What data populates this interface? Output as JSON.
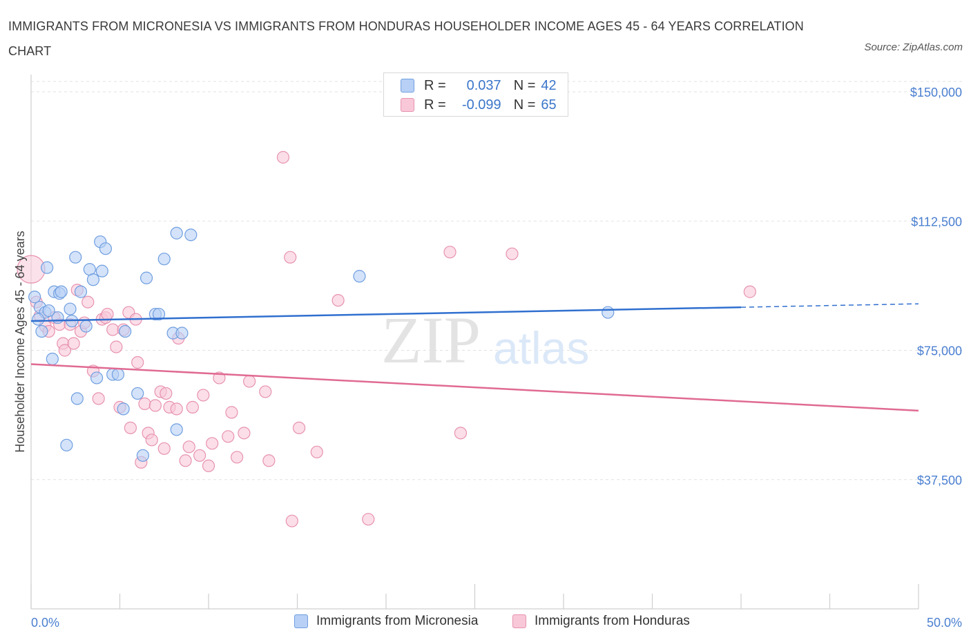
{
  "title": "IMMIGRANTS FROM MICRONESIA VS IMMIGRANTS FROM HONDURAS HOUSEHOLDER INCOME AGES 45 - 64 YEARS CORRELATION CHART",
  "source": "Source: ZipAtlas.com",
  "watermark": {
    "zip": "ZIP",
    "atlas": "atlas"
  },
  "legend": {
    "r_label": "R =",
    "n_label": "N =",
    "series1": {
      "r": "0.037",
      "n": "42"
    },
    "series2": {
      "r": "-0.099",
      "n": "65"
    }
  },
  "colors": {
    "micronesia_fill": "#b8d0f5",
    "micronesia_stroke": "#6f9ee0",
    "micronesia_line": "#2f6fcf",
    "honduras_fill": "#f8c8d8",
    "honduras_stroke": "#e792b0",
    "honduras_line": "#e06a92",
    "axis_text": "#4a7fd0"
  },
  "chart_data": {
    "type": "scatter",
    "title": "IMMIGRANTS FROM MICRONESIA VS IMMIGRANTS FROM HONDURAS HOUSEHOLDER INCOME AGES 45 - 64 YEARS CORRELATION CHART",
    "xlabel": "",
    "ylabel": "Householder Income Ages 45 - 64 years",
    "xlim": [
      0,
      50
    ],
    "ylim": [
      0,
      150000
    ],
    "x_tick_labels": [
      "0.0%",
      "50.0%"
    ],
    "y_ticks": [
      37500,
      75000,
      112500,
      150000
    ],
    "y_tick_labels": [
      "$37,500",
      "$75,000",
      "$112,500",
      "$150,000"
    ],
    "grid": true,
    "legend_position": "top-center",
    "series": [
      {
        "name": "Immigrants from Micronesia",
        "r": 0.037,
        "n": 42,
        "trend": {
          "x": [
            0,
            40
          ],
          "y": [
            83500,
            87500
          ],
          "dashed_to_x": 50,
          "dashed_to_y": 88500
        },
        "points": [
          [
            0.2,
            90500
          ],
          [
            0.5,
            87500
          ],
          [
            0.6,
            80500
          ],
          [
            0.8,
            86000
          ],
          [
            0.9,
            99000
          ],
          [
            1.2,
            72500
          ],
          [
            1.3,
            92000
          ],
          [
            1.5,
            84500
          ],
          [
            1.6,
            91500
          ],
          [
            1.7,
            92000
          ],
          [
            2.0,
            47500
          ],
          [
            2.2,
            87000
          ],
          [
            2.3,
            83500
          ],
          [
            2.5,
            102000
          ],
          [
            2.6,
            61000
          ],
          [
            2.8,
            92000
          ],
          [
            3.1,
            82000
          ],
          [
            3.3,
            98500
          ],
          [
            3.5,
            95500
          ],
          [
            3.7,
            67000
          ],
          [
            3.9,
            106500
          ],
          [
            4.0,
            98000
          ],
          [
            4.2,
            104500
          ],
          [
            4.6,
            68000
          ],
          [
            4.9,
            68000
          ],
          [
            5.2,
            58000
          ],
          [
            5.3,
            80500
          ],
          [
            6.0,
            62500
          ],
          [
            6.3,
            44500
          ],
          [
            6.5,
            96000
          ],
          [
            7.0,
            85500
          ],
          [
            7.2,
            85500
          ],
          [
            7.5,
            101500
          ],
          [
            8.0,
            80000
          ],
          [
            8.2,
            109000
          ],
          [
            8.5,
            80000
          ],
          [
            8.2,
            52000
          ],
          [
            9.0,
            108500
          ],
          [
            18.5,
            96500
          ],
          [
            32.5,
            86000
          ],
          [
            0.4,
            84000
          ],
          [
            1.0,
            86500
          ]
        ]
      },
      {
        "name": "Immigrants from Honduras",
        "r": -0.099,
        "n": 65,
        "trend": {
          "x": [
            0,
            50
          ],
          "y": [
            71000,
            57500
          ]
        },
        "points": [
          [
            0.0,
            98500
          ],
          [
            0.3,
            89000
          ],
          [
            0.5,
            85000
          ],
          [
            0.8,
            82000
          ],
          [
            1.0,
            80500
          ],
          [
            1.3,
            84500
          ],
          [
            1.6,
            82500
          ],
          [
            1.8,
            77000
          ],
          [
            1.9,
            75000
          ],
          [
            2.2,
            82500
          ],
          [
            2.4,
            77000
          ],
          [
            2.6,
            92500
          ],
          [
            2.8,
            80500
          ],
          [
            3.0,
            83000
          ],
          [
            3.2,
            89000
          ],
          [
            3.5,
            69000
          ],
          [
            3.8,
            61000
          ],
          [
            4.0,
            84000
          ],
          [
            4.2,
            84500
          ],
          [
            4.3,
            85500
          ],
          [
            4.6,
            81000
          ],
          [
            4.8,
            76000
          ],
          [
            5.0,
            58500
          ],
          [
            5.2,
            81000
          ],
          [
            5.5,
            86000
          ],
          [
            5.6,
            52500
          ],
          [
            5.9,
            84000
          ],
          [
            6.0,
            71500
          ],
          [
            6.2,
            42500
          ],
          [
            6.4,
            59500
          ],
          [
            6.6,
            51000
          ],
          [
            6.8,
            49000
          ],
          [
            7.0,
            59000
          ],
          [
            7.3,
            63000
          ],
          [
            7.5,
            46500
          ],
          [
            7.6,
            62500
          ],
          [
            7.8,
            58500
          ],
          [
            8.2,
            58000
          ],
          [
            8.3,
            78500
          ],
          [
            8.7,
            43000
          ],
          [
            8.9,
            47000
          ],
          [
            9.1,
            58500
          ],
          [
            9.5,
            44500
          ],
          [
            9.7,
            62000
          ],
          [
            10.0,
            41500
          ],
          [
            10.2,
            48000
          ],
          [
            10.6,
            67000
          ],
          [
            11.1,
            50000
          ],
          [
            11.3,
            57000
          ],
          [
            11.6,
            44000
          ],
          [
            12.0,
            51000
          ],
          [
            12.3,
            66000
          ],
          [
            13.2,
            63000
          ],
          [
            13.4,
            43000
          ],
          [
            14.2,
            131000
          ],
          [
            14.6,
            102000
          ],
          [
            14.7,
            25500
          ],
          [
            15.1,
            52500
          ],
          [
            16.1,
            45500
          ],
          [
            17.3,
            89500
          ],
          [
            19.0,
            26000
          ],
          [
            23.6,
            103500
          ],
          [
            24.2,
            51000
          ],
          [
            27.1,
            103000
          ],
          [
            40.5,
            92000
          ]
        ]
      }
    ]
  },
  "bottom_legend": {
    "series1": "Immigrants from Micronesia",
    "series2": "Immigrants from Honduras"
  }
}
